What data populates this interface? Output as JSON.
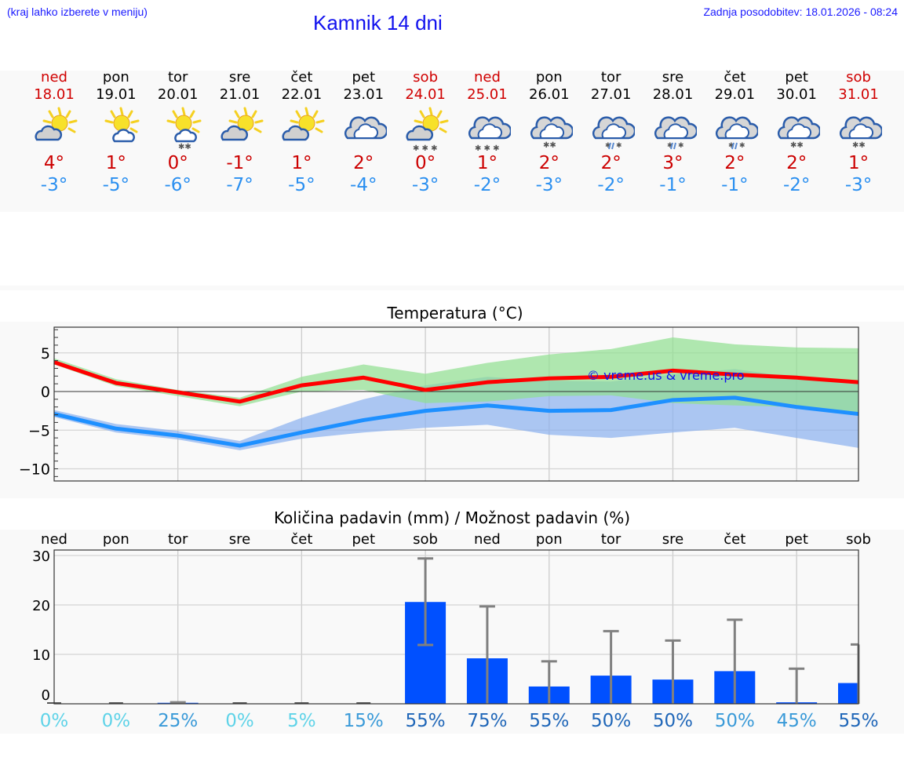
{
  "header": {
    "hint": "(kraj lahko izberete v meniju)",
    "title": "Kamnik 14 dni",
    "updated": "Zadnja posodobitev: 18.01.2026 - 08:24"
  },
  "days": [
    {
      "name": "ned",
      "date": "18.01",
      "weekend": true,
      "icon": "sun-cloud-icon",
      "tmax": "4°",
      "tmin": "-3°"
    },
    {
      "name": "pon",
      "date": "19.01",
      "weekend": false,
      "icon": "sun-light-cloud-icon",
      "tmax": "1°",
      "tmin": "-5°"
    },
    {
      "name": "tor",
      "date": "20.01",
      "weekend": false,
      "icon": "sun-cloud-light-snow-icon",
      "tmax": "0°",
      "tmin": "-6°"
    },
    {
      "name": "sre",
      "date": "21.01",
      "weekend": false,
      "icon": "sun-cloud-icon",
      "tmax": "-1°",
      "tmin": "-7°"
    },
    {
      "name": "čet",
      "date": "22.01",
      "weekend": false,
      "icon": "sun-cloud-icon",
      "tmax": "1°",
      "tmin": "-5°"
    },
    {
      "name": "pet",
      "date": "23.01",
      "weekend": false,
      "icon": "overcast-icon",
      "tmax": "2°",
      "tmin": "-4°"
    },
    {
      "name": "sob",
      "date": "24.01",
      "weekend": true,
      "icon": "sun-cloud-snow-icon",
      "tmax": "0°",
      "tmin": "-3°"
    },
    {
      "name": "ned",
      "date": "25.01",
      "weekend": true,
      "icon": "overcast-snow-icon",
      "tmax": "1°",
      "tmin": "-2°"
    },
    {
      "name": "pon",
      "date": "26.01",
      "weekend": false,
      "icon": "overcast-light-snow-icon",
      "tmax": "2°",
      "tmin": "-3°"
    },
    {
      "name": "tor",
      "date": "27.01",
      "weekend": false,
      "icon": "overcast-sleet-icon",
      "tmax": "2°",
      "tmin": "-2°"
    },
    {
      "name": "sre",
      "date": "28.01",
      "weekend": false,
      "icon": "overcast-sleet-icon",
      "tmax": "3°",
      "tmin": "-1°"
    },
    {
      "name": "čet",
      "date": "29.01",
      "weekend": false,
      "icon": "overcast-sleet-icon",
      "tmax": "2°",
      "tmin": "-1°"
    },
    {
      "name": "pet",
      "date": "30.01",
      "weekend": false,
      "icon": "overcast-light-snow-icon",
      "tmax": "2°",
      "tmin": "-2°"
    },
    {
      "name": "sob",
      "date": "31.01",
      "weekend": true,
      "icon": "overcast-light-snow-icon",
      "tmax": "1°",
      "tmin": "-3°"
    }
  ],
  "colors": {
    "weekend": "#d00000",
    "tmax_text": "#cc0000",
    "tmin_text": "#2a8ff0",
    "max_line": "#ff0000",
    "min_line": "#1e90ff",
    "max_band": "#90e090",
    "min_band": "#8ab0f0",
    "bar": "#0050ff",
    "errorbar": "#808080",
    "watermark": "#1010ee"
  },
  "chart_data": [
    {
      "type": "line",
      "title": "Temperatura (°C)",
      "xlabel": "",
      "ylabel": "",
      "ylim": [
        -11.6,
        8.3
      ],
      "yticks": [
        5,
        0,
        -5,
        -10
      ],
      "ytick_labels": [
        "5",
        "0",
        "−5",
        "−10"
      ],
      "grid": true,
      "watermark": "© vreme.us & vreme.pro",
      "x": [
        "18.01",
        "19.01",
        "20.01",
        "21.01",
        "22.01",
        "23.01",
        "24.01",
        "25.01",
        "26.01",
        "27.01",
        "28.01",
        "29.01",
        "30.01",
        "31.01"
      ],
      "series": [
        {
          "name": "Max",
          "values": [
            3.8,
            1.1,
            -0.1,
            -1.3,
            0.8,
            1.8,
            0.2,
            1.2,
            1.7,
            1.9,
            2.7,
            2.2,
            1.8,
            1.2
          ],
          "band_low": [
            3.5,
            0.7,
            -0.6,
            -1.9,
            0.0,
            0.2,
            -1.5,
            -1.3,
            -0.6,
            -0.5,
            -1.5,
            -1.8,
            -2.0,
            -3.0
          ],
          "band_high": [
            4.3,
            1.6,
            0.2,
            -0.8,
            1.9,
            3.5,
            2.3,
            3.7,
            4.8,
            5.5,
            7.0,
            6.1,
            5.7,
            5.6
          ]
        },
        {
          "name": "Min",
          "values": [
            -2.9,
            -4.8,
            -5.7,
            -7.0,
            -5.3,
            -3.7,
            -2.5,
            -1.8,
            -2.5,
            -2.4,
            -1.1,
            -0.8,
            -2.0,
            -2.9
          ],
          "band_low": [
            -3.3,
            -5.3,
            -6.2,
            -7.6,
            -6.1,
            -5.3,
            -4.7,
            -4.3,
            -5.6,
            -6.0,
            -5.3,
            -4.7,
            -6.0,
            -7.3
          ],
          "band_high": [
            -2.4,
            -4.2,
            -5.1,
            -6.4,
            -3.4,
            -1.0,
            0.8,
            1.9,
            1.4,
            1.3,
            2.2,
            2.9,
            1.8,
            1.3
          ]
        }
      ]
    },
    {
      "type": "bar",
      "title": "Količina padavin (mm) / Možnost padavin (%)",
      "xlabel": "",
      "ylabel": "",
      "ylim": [
        0,
        31
      ],
      "yticks": [
        0,
        10,
        20,
        30
      ],
      "grid": true,
      "categories": [
        "ned",
        "pon",
        "tor",
        "sre",
        "čet",
        "pet",
        "sob",
        "ned",
        "pon",
        "tor",
        "sre",
        "čet",
        "pet",
        "sob"
      ],
      "values": [
        0.0,
        0.0,
        0.2,
        0.0,
        0.0,
        0.0,
        20.6,
        9.2,
        3.5,
        5.7,
        4.9,
        6.6,
        0.3,
        4.2
      ],
      "error_low": [
        0.0,
        0.0,
        0.0,
        0.0,
        0.0,
        0.0,
        11.9,
        0.0,
        0.0,
        0.0,
        0.0,
        0.0,
        0.0,
        0.0
      ],
      "error_high": [
        0.0,
        0.0,
        0.3,
        0.0,
        0.0,
        0.0,
        29.4,
        19.7,
        8.6,
        14.7,
        12.8,
        17.0,
        7.1,
        12.0
      ],
      "probability": [
        "0%",
        "0%",
        "25%",
        "0%",
        "5%",
        "15%",
        "55%",
        "75%",
        "55%",
        "50%",
        "50%",
        "50%",
        "45%",
        "55%"
      ],
      "probability_colors": [
        "#5fd3e8",
        "#5fd3e8",
        "#3a9ad8",
        "#5fd3e8",
        "#5fd3e8",
        "#3a9ad8",
        "#1f66b8",
        "#1f66b8",
        "#1f66b8",
        "#1f66b8",
        "#1f66b8",
        "#3a9ad8",
        "#3a9ad8",
        "#1f66b8"
      ]
    }
  ]
}
